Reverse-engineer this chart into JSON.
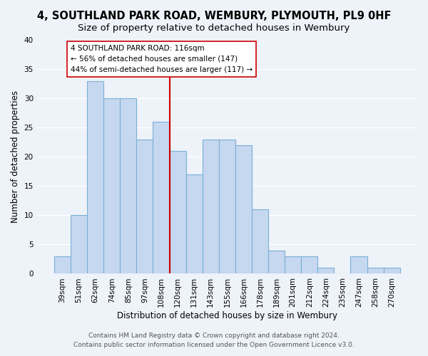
{
  "title": "4, SOUTHLAND PARK ROAD, WEMBURY, PLYMOUTH, PL9 0HF",
  "subtitle": "Size of property relative to detached houses in Wembury",
  "xlabel": "Distribution of detached houses by size in Wembury",
  "ylabel": "Number of detached properties",
  "categories": [
    "39sqm",
    "51sqm",
    "62sqm",
    "74sqm",
    "85sqm",
    "97sqm",
    "108sqm",
    "120sqm",
    "131sqm",
    "143sqm",
    "155sqm",
    "166sqm",
    "178sqm",
    "189sqm",
    "201sqm",
    "212sqm",
    "224sqm",
    "235sqm",
    "247sqm",
    "258sqm",
    "270sqm"
  ],
  "values": [
    3,
    10,
    33,
    30,
    30,
    23,
    26,
    21,
    17,
    23,
    23,
    22,
    11,
    4,
    3,
    3,
    1,
    0,
    3,
    1,
    1
  ],
  "bar_color": "#c5d8f0",
  "bar_edge_color": "#7bafd4",
  "vline_x_index": 7,
  "vline_color": "#cc0000",
  "annotation_line1": "4 SOUTHLAND PARK ROAD: 116sqm",
  "annotation_line2": "← 56% of detached houses are smaller (147)",
  "annotation_line3": "44% of semi-detached houses are larger (117) →",
  "annotation_box_color": "#ffffff",
  "annotation_box_edge_color": "#cc0000",
  "ylim": [
    0,
    40
  ],
  "yticks": [
    0,
    5,
    10,
    15,
    20,
    25,
    30,
    35,
    40
  ],
  "footer_line1": "Contains HM Land Registry data © Crown copyright and database right 2024.",
  "footer_line2": "Contains public sector information licensed under the Open Government Licence v3.0.",
  "background_color": "#eef2f9",
  "grid_color": "#ffffff",
  "title_fontsize": 10.5,
  "subtitle_fontsize": 9.5,
  "axis_label_fontsize": 8.5,
  "tick_fontsize": 7.5,
  "footer_fontsize": 6.5
}
